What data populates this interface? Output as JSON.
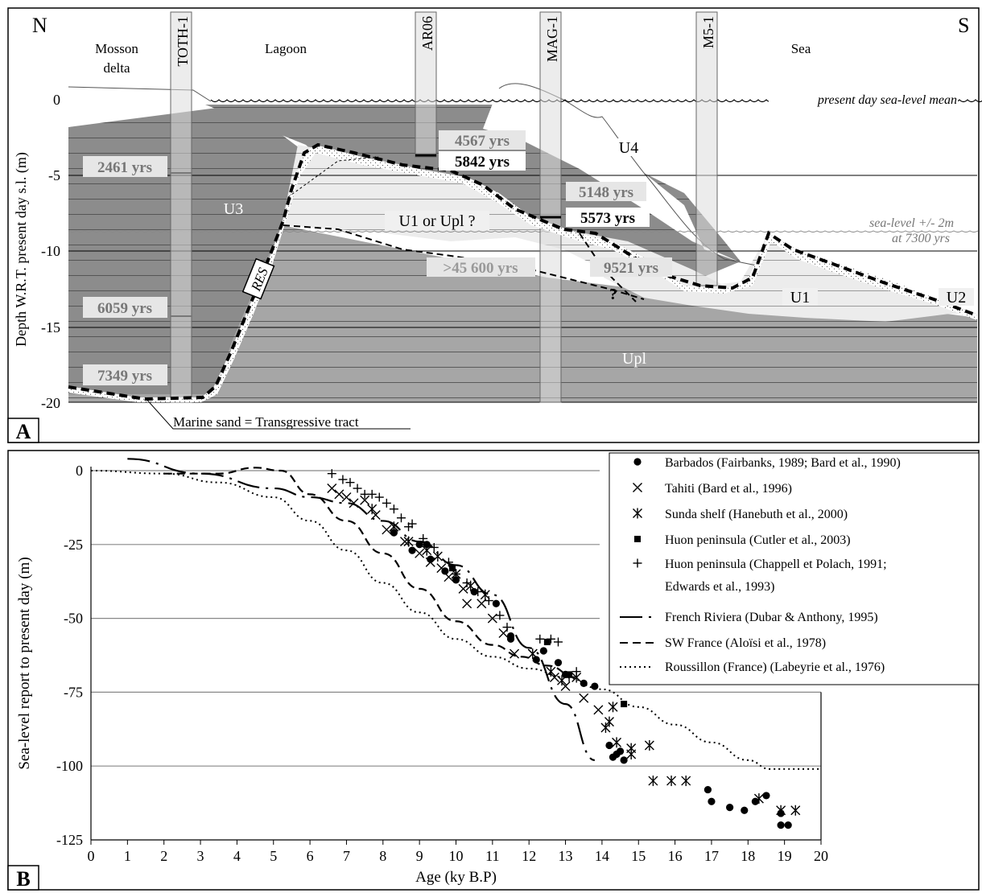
{
  "panelA": {
    "label": "A",
    "north": "N",
    "south": "S",
    "ylabel": "Depth W.R.T. present day s.l. (m)",
    "yticks": [
      "0",
      "-5",
      "-10",
      "-15",
      "-20"
    ],
    "zones": [
      "Mosson",
      "delta",
      "Lagoon",
      "Sea"
    ],
    "cores": [
      "TOTH-1",
      "AR06",
      "MAG-1",
      "M5-1"
    ],
    "units": [
      "U3",
      "U4",
      "U1 or Upl ?",
      "U1",
      "U2",
      "Upl"
    ],
    "res": "RES",
    "ages_gray": [
      "2461 yrs",
      "6059 yrs",
      "7349 yrs",
      "4567 yrs",
      "5148 yrs",
      ">45 600 yrs",
      "9521 yrs"
    ],
    "ages_bold": [
      "5842 yrs",
      "5573 yrs"
    ],
    "question_mark": "?",
    "sealevel_mean": "present day sea-level mean",
    "sealevel_range": [
      "sea-level +/- 2m",
      "at 7300 yrs"
    ],
    "marine_sand": "Marine sand = Transgressive tract"
  },
  "chart_data": {
    "type": "scatter",
    "title": "",
    "xlabel": "Age (ky B.P)",
    "ylabel": "Sea-level report to present day (m)",
    "xlim": [
      0,
      20
    ],
    "ylim": [
      -125,
      0
    ],
    "xticks": [
      "0",
      "1",
      "2",
      "3",
      "4",
      "5",
      "6",
      "7",
      "8",
      "9",
      "10",
      "11",
      "12",
      "13",
      "14",
      "15",
      "16",
      "17",
      "18",
      "19",
      "20"
    ],
    "yticks": [
      "0",
      "-25",
      "-50",
      "-75",
      "-100",
      "-125"
    ],
    "grid": "horizontal",
    "legend_position": "top-right",
    "legend": [
      "Barbados (Fairbanks, 1989; Bard et al., 1990)",
      "Tahiti (Bard et al., 1996)",
      "Sunda shelf (Hanebuth et al., 2000)",
      "Huon peninsula (Cutler et al., 2003)",
      "Huon peninsula (Chappell et Polach, 1991;",
      "Edwards et al., 1993)",
      "French Riviera (Dubar & Anthony, 1995)",
      "SW France (Aloïsi et al., 1978)",
      "Roussillon (France) (Labeyrie et al., 1976)"
    ],
    "series": [
      {
        "marker": "dot",
        "points": [
          [
            8.3,
            -21
          ],
          [
            8.8,
            -27
          ],
          [
            9.0,
            -25
          ],
          [
            9.2,
            -25
          ],
          [
            9.3,
            -30
          ],
          [
            9.7,
            -34
          ],
          [
            10.0,
            -37
          ],
          [
            10.5,
            -41
          ],
          [
            11.1,
            -45
          ],
          [
            11.5,
            -56
          ],
          [
            11.5,
            -57
          ],
          [
            12.2,
            -64
          ],
          [
            12.4,
            -61
          ],
          [
            12.8,
            -65
          ],
          [
            13.0,
            -69
          ],
          [
            13.5,
            -72
          ],
          [
            13.8,
            -73
          ],
          [
            14.2,
            -93
          ],
          [
            14.3,
            -97
          ],
          [
            14.4,
            -96
          ],
          [
            14.5,
            -95
          ],
          [
            14.6,
            -98
          ],
          [
            16.9,
            -108
          ],
          [
            17.0,
            -112
          ],
          [
            17.5,
            -114
          ],
          [
            17.9,
            -115
          ],
          [
            18.2,
            -112
          ],
          [
            18.5,
            -110
          ],
          [
            18.9,
            -116
          ],
          [
            18.9,
            -120
          ],
          [
            19.1,
            -120
          ]
        ]
      },
      {
        "marker": "x",
        "points": [
          [
            6.6,
            -6
          ],
          [
            6.8,
            -8
          ],
          [
            7.0,
            -9
          ],
          [
            7.2,
            -11
          ],
          [
            7.5,
            -10
          ],
          [
            7.8,
            -15
          ],
          [
            8.1,
            -20
          ],
          [
            8.6,
            -24
          ],
          [
            9.0,
            -28
          ],
          [
            9.3,
            -31
          ],
          [
            9.6,
            -33
          ],
          [
            9.8,
            -36
          ],
          [
            10.2,
            -40
          ],
          [
            10.3,
            -45
          ],
          [
            10.7,
            -45
          ],
          [
            11.0,
            -50
          ],
          [
            11.3,
            -55
          ],
          [
            11.6,
            -62
          ],
          [
            12.1,
            -62
          ],
          [
            12.7,
            -70
          ],
          [
            13.0,
            -73
          ],
          [
            13.5,
            -77
          ],
          [
            13.9,
            -81
          ]
        ]
      },
      {
        "marker": "asterisk",
        "points": [
          [
            7.7,
            -13
          ],
          [
            8.3,
            -19
          ],
          [
            8.7,
            -24
          ],
          [
            9.2,
            -27
          ],
          [
            9.5,
            -29
          ],
          [
            10.0,
            -35
          ],
          [
            10.4,
            -39
          ],
          [
            10.8,
            -42
          ],
          [
            12.1,
            -62
          ],
          [
            12.6,
            -68
          ],
          [
            12.9,
            -71
          ],
          [
            13.3,
            -70
          ],
          [
            14.1,
            -87
          ],
          [
            14.2,
            -85
          ],
          [
            14.3,
            -80
          ],
          [
            14.4,
            -92
          ],
          [
            14.8,
            -94
          ],
          [
            14.8,
            -96
          ],
          [
            15.3,
            -93
          ],
          [
            15.4,
            -105
          ],
          [
            15.9,
            -105
          ],
          [
            16.3,
            -105
          ],
          [
            18.3,
            -111
          ],
          [
            18.9,
            -115
          ],
          [
            19.3,
            -115
          ]
        ]
      },
      {
        "marker": "square",
        "points": [
          [
            9.9,
            -33
          ],
          [
            12.5,
            -58
          ],
          [
            13.1,
            -69
          ],
          [
            14.6,
            -79
          ]
        ]
      },
      {
        "marker": "plus",
        "points": [
          [
            6.6,
            -1
          ],
          [
            6.9,
            -3
          ],
          [
            7.1,
            -4
          ],
          [
            7.3,
            -6
          ],
          [
            7.5,
            -8
          ],
          [
            7.7,
            -8
          ],
          [
            7.9,
            -9
          ],
          [
            8.1,
            -11
          ],
          [
            8.3,
            -13
          ],
          [
            8.5,
            -16
          ],
          [
            8.7,
            -19
          ],
          [
            8.8,
            -18
          ],
          [
            9.1,
            -23
          ],
          [
            9.4,
            -26
          ],
          [
            9.8,
            -31
          ],
          [
            10.0,
            -35
          ],
          [
            10.3,
            -38
          ],
          [
            10.6,
            -41
          ],
          [
            10.9,
            -44
          ],
          [
            11.2,
            -49
          ],
          [
            11.4,
            -53
          ],
          [
            12.3,
            -57
          ],
          [
            12.6,
            -57
          ],
          [
            12.8,
            -58
          ],
          [
            13.1,
            -70
          ],
          [
            13.3,
            -68
          ]
        ]
      }
    ],
    "curves": [
      {
        "style": "long-dash",
        "points": [
          [
            1.0,
            4
          ],
          [
            3.0,
            -1
          ],
          [
            5.0,
            -6
          ],
          [
            6.0,
            -9
          ],
          [
            7.0,
            -11
          ],
          [
            8.0,
            -17
          ],
          [
            9.0,
            -24
          ],
          [
            10.0,
            -32
          ],
          [
            11.0,
            -42
          ],
          [
            12.0,
            -60
          ],
          [
            13.0,
            -79
          ],
          [
            13.8,
            -98
          ]
        ]
      },
      {
        "style": "dash",
        "points": [
          [
            2.0,
            -1
          ],
          [
            3.5,
            -1
          ],
          [
            4.5,
            1
          ],
          [
            5.2,
            0
          ],
          [
            6.0,
            -8
          ],
          [
            7.0,
            -17
          ],
          [
            8.0,
            -28
          ],
          [
            9.0,
            -40
          ],
          [
            10.0,
            -51
          ],
          [
            11.0,
            -59
          ],
          [
            11.8,
            -63
          ],
          [
            12.5,
            -66
          ],
          [
            13.3,
            -70
          ]
        ]
      },
      {
        "style": "dotted",
        "points": [
          [
            0.0,
            0
          ],
          [
            2.0,
            -1
          ],
          [
            3.5,
            -4
          ],
          [
            5.0,
            -9
          ],
          [
            6.0,
            -17
          ],
          [
            7.0,
            -27
          ],
          [
            8.0,
            -38
          ],
          [
            9.0,
            -48
          ],
          [
            10.0,
            -57
          ],
          [
            11.0,
            -63
          ],
          [
            12.0,
            -67
          ],
          [
            13.0,
            -70
          ],
          [
            14.0,
            -74
          ],
          [
            15.0,
            -80
          ],
          [
            16.0,
            -86
          ],
          [
            17.0,
            -92
          ],
          [
            18.0,
            -98
          ],
          [
            18.6,
            -101
          ],
          [
            20.0,
            -101
          ]
        ]
      }
    ]
  },
  "panelB": {
    "label": "B"
  }
}
